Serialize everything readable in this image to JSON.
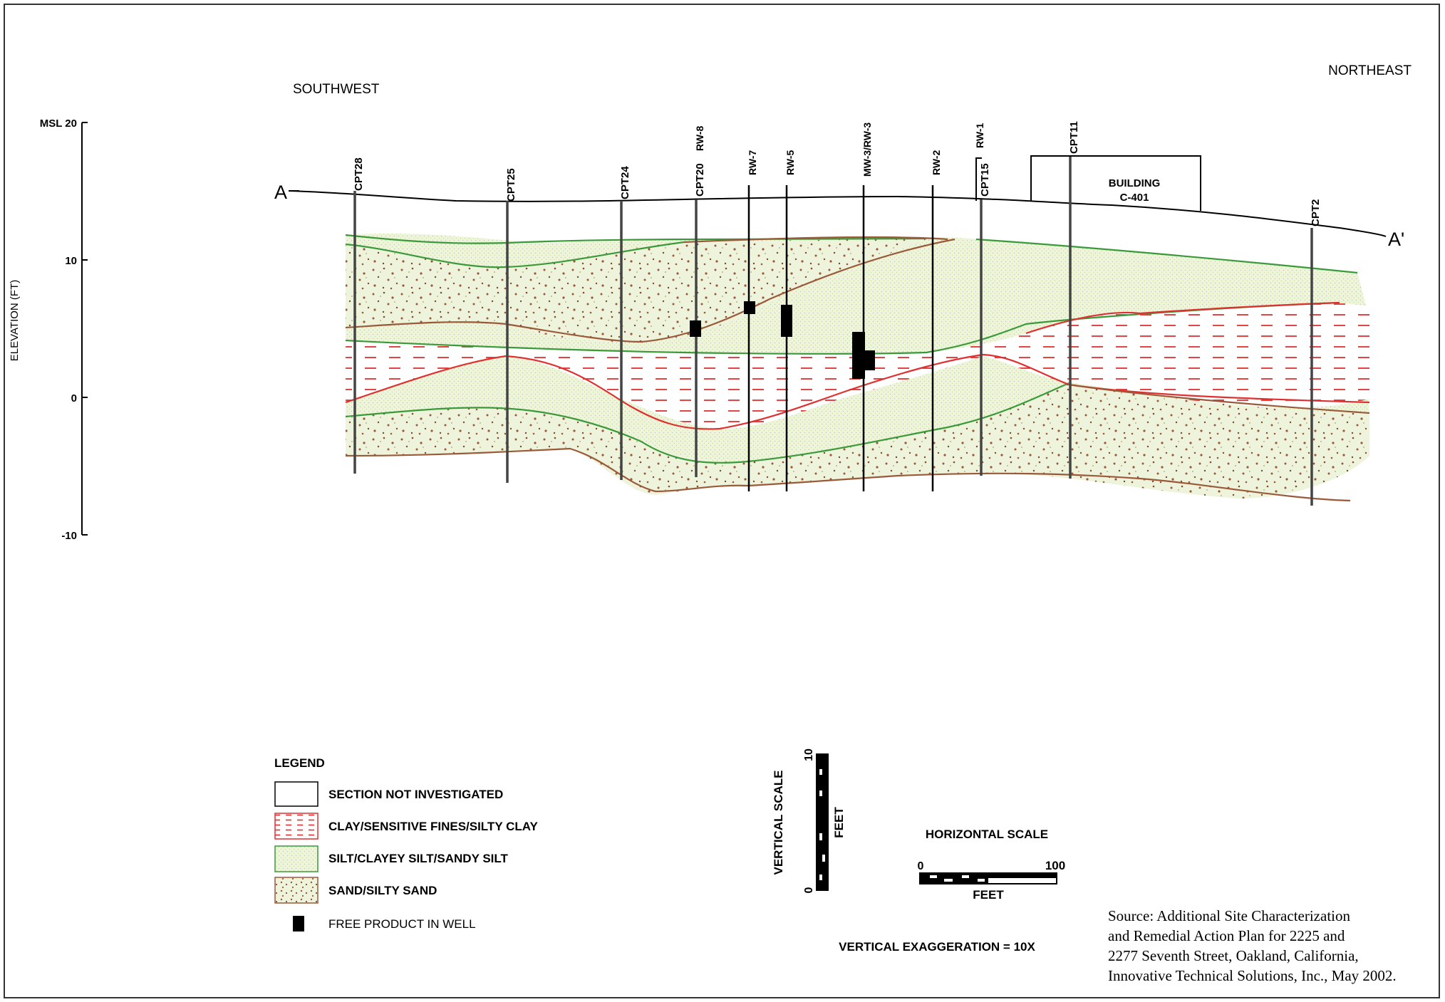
{
  "directions": {
    "left": "SOUTHWEST",
    "right": "NORTHEAST"
  },
  "section": {
    "start": "A",
    "end": "A'"
  },
  "axis": {
    "label": "ELEVATION (FT)",
    "ticks": [
      "MSL 20",
      "10",
      "0",
      "-10"
    ]
  },
  "wells": [
    {
      "id": "CPT28"
    },
    {
      "id": "CPT25"
    },
    {
      "id": "CPT24"
    },
    {
      "id": "CPT20"
    },
    {
      "id": "RW-8"
    },
    {
      "id": "RW-7"
    },
    {
      "id": "RW-5"
    },
    {
      "id": "MW-3/RW-3"
    },
    {
      "id": "RW-2"
    },
    {
      "id": "RW-1"
    },
    {
      "id": "CPT15"
    },
    {
      "id": "CPT11"
    },
    {
      "id": "CPT2"
    }
  ],
  "building": {
    "line1": "BUILDING",
    "line2": "C-401"
  },
  "legend": {
    "title": "LEGEND",
    "items": [
      {
        "label": "SECTION NOT INVESTIGATED",
        "pattern": "none"
      },
      {
        "label": "CLAY/SENSITIVE FINES/SILTY CLAY",
        "pattern": "clay",
        "color": "#e03030"
      },
      {
        "label": "SILT/CLAYEY SILT/SANDY SILT",
        "pattern": "silt",
        "color": "#3a9a3a"
      },
      {
        "label": "SAND/SILTY SAND",
        "pattern": "sand",
        "color": "#9a5a3a"
      },
      {
        "label": "FREE PRODUCT IN WELL",
        "pattern": "product",
        "color": "#000000"
      }
    ]
  },
  "vertical_scale": {
    "label": "VERTICAL SCALE",
    "min": "0",
    "max": "10",
    "unit": "FEET"
  },
  "horizontal_scale": {
    "label": "HORIZONTAL SCALE",
    "min": "0",
    "max": "100",
    "unit": "FEET"
  },
  "exaggeration": "VERTICAL EXAGGERATION = 10X",
  "source": [
    "Source: Additional Site Characterization",
    "and Remedial Action Plan for 2225 and",
    "2277 Seventh Street, Oakland, California,",
    "Innovative Technical Solutions, Inc., May 2002."
  ],
  "colors": {
    "clay": "#e03030",
    "silt": "#3a9a3a",
    "sand": "#9a5a3a",
    "silt_fill": "#eef5dc"
  }
}
